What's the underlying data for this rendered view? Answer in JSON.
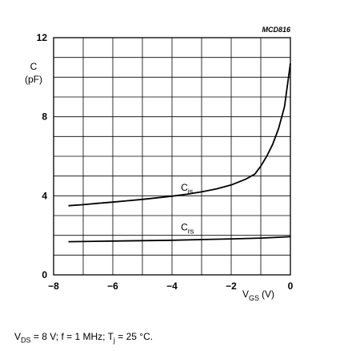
{
  "chart_data": {
    "type": "line",
    "code": "MCD816",
    "ylabel": {
      "symbol": "C",
      "unit": "(pF)"
    },
    "xlabel": {
      "symbol": "V",
      "subscript": "GS",
      "unit": "(V)"
    },
    "xlim": [
      -8,
      0
    ],
    "ylim": [
      0,
      12
    ],
    "x_ticks": [
      {
        "value": -8,
        "label": "−8"
      },
      {
        "value": -6,
        "label": "−6"
      },
      {
        "value": -4,
        "label": "−4"
      },
      {
        "value": -2,
        "label": "−2"
      },
      {
        "value": 0,
        "label": "0"
      }
    ],
    "y_ticks": [
      {
        "value": 0,
        "label": "0"
      },
      {
        "value": 4,
        "label": "4"
      },
      {
        "value": 8,
        "label": "8"
      },
      {
        "value": 12,
        "label": "12"
      }
    ],
    "grid": {
      "x_step": 1,
      "y_step": 1
    },
    "series": [
      {
        "name": "Cis",
        "base": "C",
        "sub": "is",
        "label_at": {
          "x": -3.7,
          "y": 4.25
        },
        "points": [
          [
            -7.5,
            3.5
          ],
          [
            -7.0,
            3.55
          ],
          [
            -6.5,
            3.62
          ],
          [
            -6.0,
            3.68
          ],
          [
            -5.5,
            3.75
          ],
          [
            -5.0,
            3.82
          ],
          [
            -4.5,
            3.9
          ],
          [
            -4.0,
            3.98
          ],
          [
            -3.5,
            4.08
          ],
          [
            -3.0,
            4.2
          ],
          [
            -2.5,
            4.35
          ],
          [
            -2.0,
            4.55
          ],
          [
            -1.5,
            4.85
          ],
          [
            -1.2,
            5.1
          ],
          [
            -1.0,
            5.5
          ],
          [
            -0.8,
            6.0
          ],
          [
            -0.6,
            6.6
          ],
          [
            -0.4,
            7.4
          ],
          [
            -0.2,
            8.5
          ],
          [
            0.0,
            10.7
          ]
        ]
      },
      {
        "name": "Crs",
        "base": "C",
        "sub": "rs",
        "label_at": {
          "x": -3.7,
          "y": 2.25
        },
        "points": [
          [
            -7.5,
            1.68
          ],
          [
            -6.0,
            1.71
          ],
          [
            -4.0,
            1.75
          ],
          [
            -2.0,
            1.82
          ],
          [
            -1.0,
            1.86
          ],
          [
            0.0,
            1.93
          ]
        ]
      }
    ]
  },
  "conditions": {
    "vds_sym": "V",
    "vds_sub": "DS",
    "vds_val": " = 8 V; f = 1 MHz; T",
    "tj_sub": "j",
    "tj_val": " = 25 °C."
  }
}
